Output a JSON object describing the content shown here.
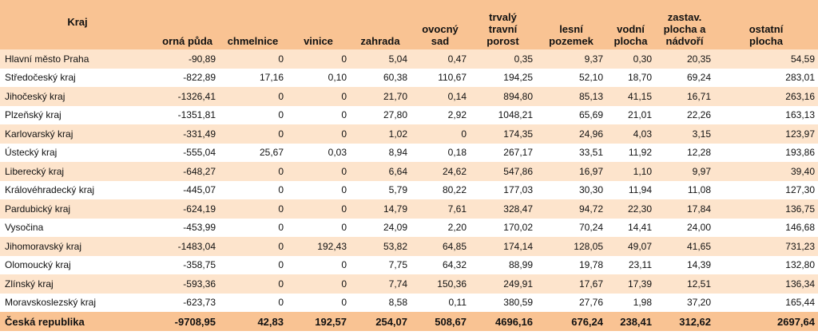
{
  "table": {
    "headers": [
      [
        "Kraj"
      ],
      [
        "orná půda"
      ],
      [
        "chmelnice"
      ],
      [
        "vinice"
      ],
      [
        "zahrada"
      ],
      [
        "ovocný",
        "sad"
      ],
      [
        "trvalý",
        "travní",
        "porost"
      ],
      [
        "lesní",
        "pozemek"
      ],
      [
        "vodní",
        "plocha"
      ],
      [
        "zastav.",
        "plocha a",
        "nádvoří"
      ],
      [
        "ostatní",
        "plocha"
      ]
    ],
    "rows": [
      [
        "Hlavní město Praha",
        "-90,89",
        "0",
        "0",
        "5,04",
        "0,47",
        "0,35",
        "9,37",
        "0,30",
        "20,35",
        "54,59"
      ],
      [
        "Středočeský kraj",
        "-822,89",
        "17,16",
        "0,10",
        "60,38",
        "110,67",
        "194,25",
        "52,10",
        "18,70",
        "69,24",
        "283,01"
      ],
      [
        "Jihočeský kraj",
        "-1326,41",
        "0",
        "0",
        "21,70",
        "0,14",
        "894,80",
        "85,13",
        "41,15",
        "16,71",
        "263,16"
      ],
      [
        "Plzeňský kraj",
        "-1351,81",
        "0",
        "0",
        "27,80",
        "2,92",
        "1048,21",
        "65,69",
        "21,01",
        "22,26",
        "163,13"
      ],
      [
        "Karlovarský kraj",
        "-331,49",
        "0",
        "0",
        "1,02",
        "0",
        "174,35",
        "24,96",
        "4,03",
        "3,15",
        "123,97"
      ],
      [
        "Ústecký kraj",
        "-555,04",
        "25,67",
        "0,03",
        "8,94",
        "0,18",
        "267,17",
        "33,51",
        "11,92",
        "12,28",
        "193,86"
      ],
      [
        "Liberecký kraj",
        "-648,27",
        "0",
        "0",
        "6,64",
        "24,62",
        "547,86",
        "16,97",
        "1,10",
        "9,97",
        "39,40"
      ],
      [
        "Královéhradecký kraj",
        "-445,07",
        "0",
        "0",
        "5,79",
        "80,22",
        "177,03",
        "30,30",
        "11,94",
        "11,08",
        "127,30"
      ],
      [
        "Pardubický kraj",
        "-624,19",
        "0",
        "0",
        "14,79",
        "7,61",
        "328,47",
        "94,72",
        "22,30",
        "17,84",
        "136,75"
      ],
      [
        "Vysočina",
        "-453,99",
        "0",
        "0",
        "24,09",
        "2,20",
        "170,02",
        "70,24",
        "14,41",
        "24,00",
        "146,68"
      ],
      [
        "Jihomoravský kraj",
        "-1483,04",
        "0",
        "192,43",
        "53,82",
        "64,85",
        "174,14",
        "128,05",
        "49,07",
        "41,65",
        "731,23"
      ],
      [
        "Olomoucký kraj",
        "-358,75",
        "0",
        "0",
        "7,75",
        "64,32",
        "88,99",
        "19,78",
        "23,11",
        "14,39",
        "132,80"
      ],
      [
        "Zlínský kraj",
        "-593,36",
        "0",
        "0",
        "7,74",
        "150,36",
        "249,91",
        "17,67",
        "17,39",
        "12,51",
        "136,34"
      ],
      [
        "Moravskoslezský kraj",
        "-623,73",
        "0",
        "0",
        "8,58",
        "0,11",
        "380,59",
        "27,76",
        "1,98",
        "37,20",
        "165,44"
      ]
    ],
    "total": [
      "Česká republika",
      "-9708,95",
      "42,83",
      "192,57",
      "254,07",
      "508,67",
      "4696,16",
      "676,24",
      "238,41",
      "312,62",
      "2697,64"
    ]
  },
  "colors": {
    "header_bg": "#f9c393",
    "band_bg": "#fde4cc",
    "row_bg": "#ffffff",
    "total_bg": "#f9c393"
  }
}
